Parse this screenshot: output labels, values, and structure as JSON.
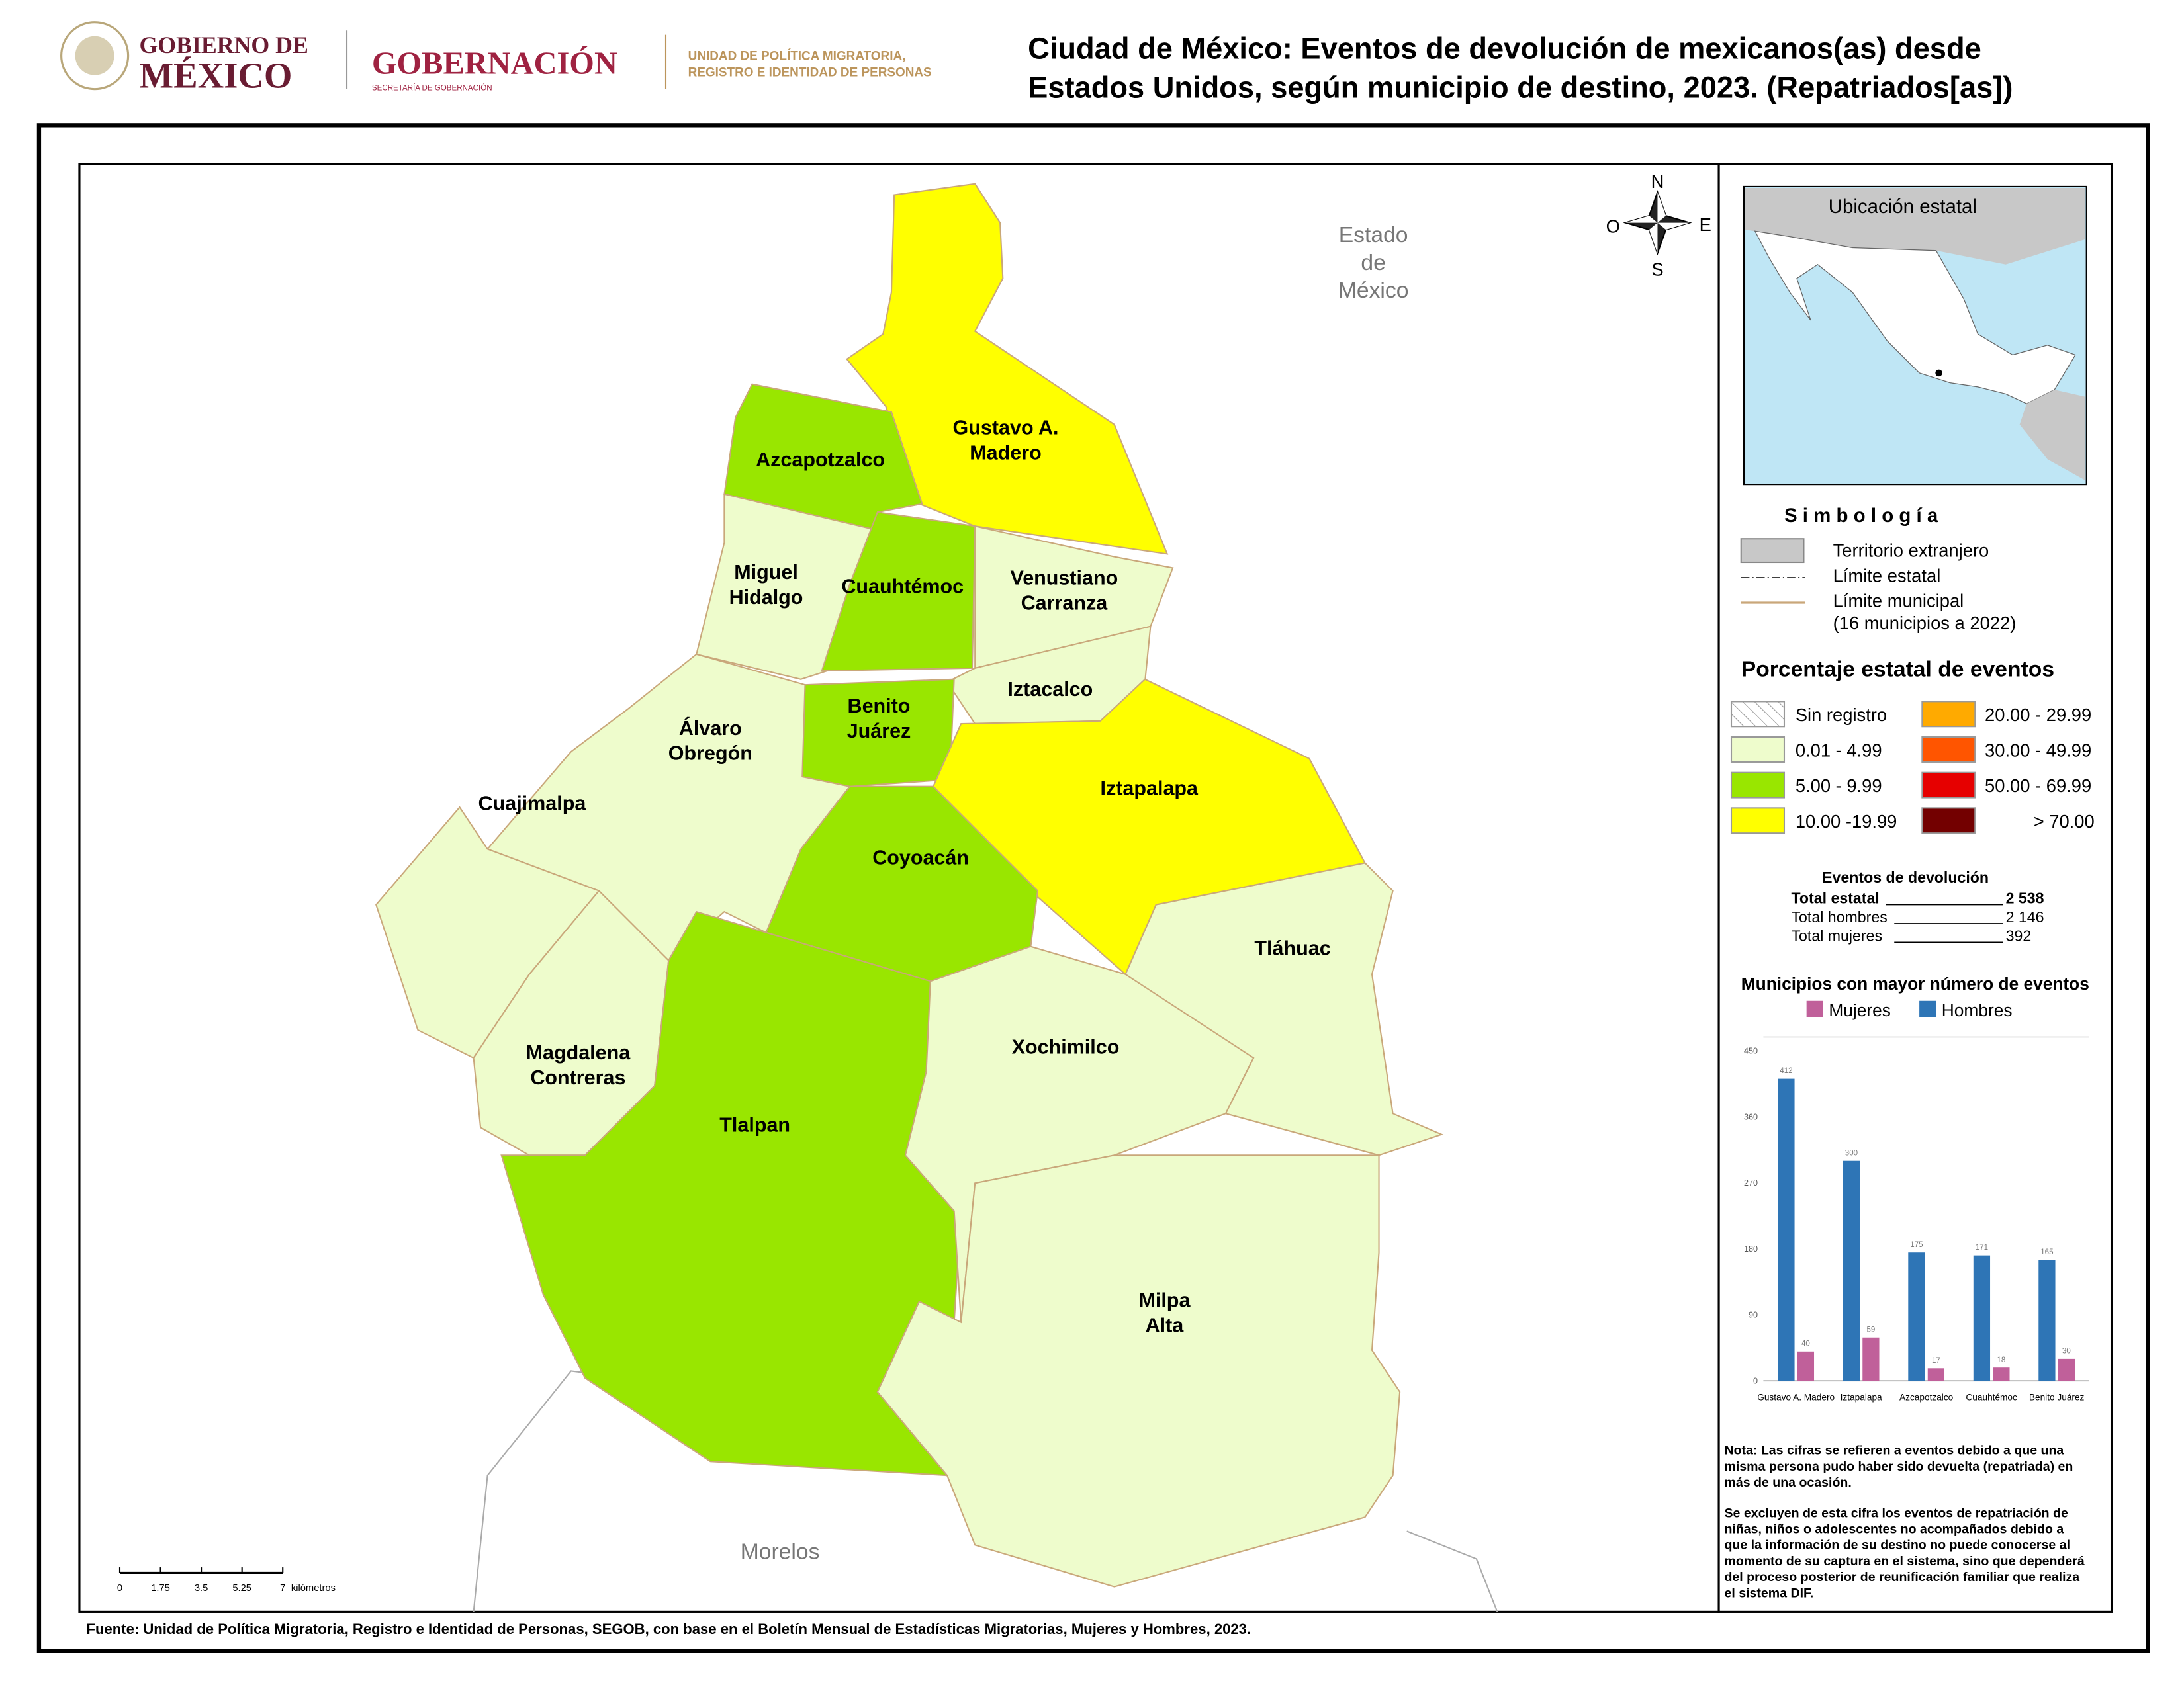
{
  "header": {
    "logo1": [
      "GOBIERNO DE",
      "MÉXICO"
    ],
    "logo2": "GOBERNACIÓN",
    "logo2_sub": "SECRETARÍA DE GOBERNACIÓN",
    "unit": [
      "UNIDAD DE POLÍTICA MIGRATORIA,",
      "REGISTRO E IDENTIDAD DE PERSONAS"
    ]
  },
  "title": [
    "Ciudad de México: Eventos de devolución de mexicanos(as) desde",
    "Estados Unidos, según municipio de destino, 2023. (Repatriados[as])"
  ],
  "map": {
    "neighbors": [
      [
        "Estado",
        "de",
        "México"
      ],
      [
        "Morelos"
      ]
    ],
    "compass": {
      "n": "N",
      "s": "S",
      "e": "E",
      "w": "O"
    },
    "municipalities": [
      {
        "name": [
          "Gustavo A.",
          "Madero"
        ],
        "color": "#ffff00"
      },
      {
        "name": [
          "Azcapotzalco"
        ],
        "color": "#99e600"
      },
      {
        "name": [
          "Miguel",
          "Hidalgo"
        ],
        "color": "#eefccc"
      },
      {
        "name": [
          "Cuauhtémoc"
        ],
        "color": "#99e600"
      },
      {
        "name": [
          "Venustiano",
          "Carranza"
        ],
        "color": "#eefccc"
      },
      {
        "name": [
          "Iztacalco"
        ],
        "color": "#eefccc"
      },
      {
        "name": [
          "Benito",
          "Juárez"
        ],
        "color": "#99e600"
      },
      {
        "name": [
          "Iztapalapa"
        ],
        "color": "#ffff00"
      },
      {
        "name": [
          "Coyoacán"
        ],
        "color": "#99e600"
      },
      {
        "name": [
          "Álvaro",
          "Obregón"
        ],
        "color": "#eefccc"
      },
      {
        "name": [
          "Cuajimalpa"
        ],
        "color": "#eefccc"
      },
      {
        "name": [
          "Magdalena",
          "Contreras"
        ],
        "color": "#eefccc"
      },
      {
        "name": [
          "Tlalpan"
        ],
        "color": "#99e600"
      },
      {
        "name": [
          "Xochimilco"
        ],
        "color": "#eefccc"
      },
      {
        "name": [
          "Tláhuac"
        ],
        "color": "#eefccc"
      },
      {
        "name": [
          "Milpa",
          "Alta"
        ],
        "color": "#eefccc"
      }
    ],
    "scale": {
      "ticks": [
        0,
        1.75,
        3.5,
        5.25,
        7
      ],
      "unit": "kilómetros"
    }
  },
  "inset": {
    "title": "Ubicación estatal"
  },
  "legend": {
    "title": "S i m b o l o g í a",
    "items": [
      "Territorio extranjero",
      "Límite estatal",
      "Límite municipal"
    ],
    "note": "(16 municipios a 2022)"
  },
  "classes": {
    "title": "Porcentaje estatal de eventos",
    "items": [
      {
        "label": "Sin registro"
      },
      {
        "label": "0.01  - 4.99",
        "color": "#eefccc"
      },
      {
        "label": "5.00  - 9.99",
        "color": "#99e600"
      },
      {
        "label": "10.00 -19.99",
        "color": "#ffff00"
      },
      {
        "label": "20.00 - 29.99",
        "color": "#ffaa00"
      },
      {
        "label": "30.00 - 49.99",
        "color": "#ff5500"
      },
      {
        "label": "50.00 - 69.99",
        "color": "#e60000"
      },
      {
        "label": "> 70.00",
        "color": "#730000"
      }
    ]
  },
  "stats": {
    "title": "Eventos de devolución",
    "rows": [
      {
        "label": "Total estatal",
        "value": "2 538"
      },
      {
        "label": "Total hombres",
        "value": "2 146"
      },
      {
        "label": "Total mujeres",
        "value": "392"
      }
    ]
  },
  "chart_data": {
    "type": "bar",
    "title": "Municipios con mayor número de eventos",
    "categories": [
      "Gustavo A. Madero",
      "Iztapalapa",
      "Azcapotzalco",
      "Cuauhtémoc",
      "Benito Juárez"
    ],
    "series": [
      {
        "name": "Mujeres",
        "color": "#c0609a",
        "values": [
          40,
          59,
          17,
          18,
          30
        ]
      },
      {
        "name": "Hombres",
        "color": "#2e75b6",
        "values": [
          412,
          300,
          175,
          171,
          165
        ]
      }
    ],
    "ylim": [
      0,
      450
    ],
    "yticks": [
      0,
      90,
      180,
      270,
      360,
      450
    ],
    "grid": false
  },
  "notes": [
    [
      "Nota: Las cifras se refieren a eventos debido a que una",
      "misma persona pudo haber sido devuelta (repatriada) en",
      "más de una ocasión."
    ],
    [
      "Se excluyen de esta cifra los eventos de repatriación de",
      "niñas, niños o adolescentes no acompañados debido a",
      "que la información de su destino no puede conocerse al",
      "momento de su captura en el sistema, sino que dependerá",
      "del proceso posterior de reunificación familiar que realiza",
      "el sistema DIF."
    ]
  ],
  "source": "Fuente: Unidad de Política Migratoria, Registro e Identidad de Personas, SEGOB, con base en el Boletín Mensual de Estadísticas Migratorias, Mujeres y Hombres, 2023."
}
